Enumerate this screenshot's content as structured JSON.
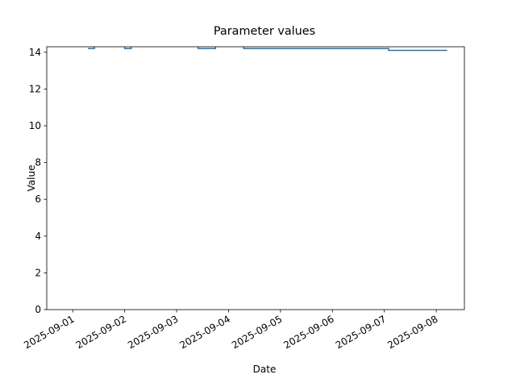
{
  "chart_data": {
    "type": "line",
    "title": "Parameter values",
    "x_label": "Date",
    "y_label": "Value",
    "x": [
      "2025-09-01 07:00",
      "2025-09-01 10:00",
      "2025-09-01 10:00",
      "2025-09-02 00:00",
      "2025-09-02 00:00",
      "2025-09-02 03:00",
      "2025-09-02 03:00",
      "2025-09-03 10:00",
      "2025-09-03 10:00",
      "2025-09-03 18:00",
      "2025-09-03 18:00",
      "2025-09-04 07:00",
      "2025-09-04 07:00",
      "2025-09-07 02:00",
      "2025-09-07 02:00",
      "2025-09-08 05:00"
    ],
    "series": [
      {
        "color": "#1f77b4",
        "values": [
          14.2,
          14.2,
          14.4,
          14.4,
          14.2,
          14.2,
          14.4,
          14.4,
          14.2,
          14.2,
          14.4,
          14.4,
          14.2,
          14.2,
          14.1,
          14.1
        ]
      }
    ],
    "xlim": [
      "2025-08-31 12:00",
      "2025-09-08 13:00"
    ],
    "xticks": [
      "2025-09-01",
      "2025-09-02",
      "2025-09-03",
      "2025-09-04",
      "2025-09-05",
      "2025-09-06",
      "2025-09-07",
      "2025-09-08"
    ],
    "ylim": [
      0,
      14.3
    ],
    "yticks": [
      0,
      2,
      4,
      6,
      8,
      10,
      12,
      14
    ],
    "grid": false
  }
}
